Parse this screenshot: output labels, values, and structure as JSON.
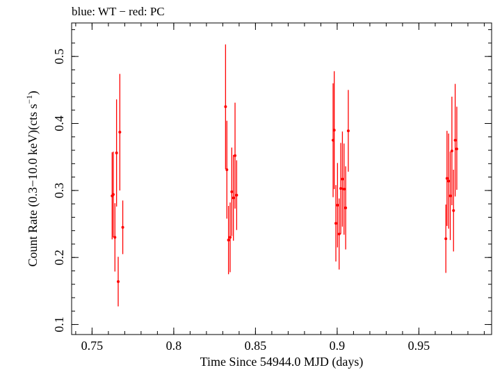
{
  "chart_data": {
    "type": "scatter",
    "title": "blue: WT − red: PC",
    "xlabel": "Time Since 54944.0 MJD (days)",
    "ylabel_main": "Count Rate (0.3−10.0 keV)(cts s",
    "ylabel_sup": "−1",
    "ylabel_end": ")",
    "xlim": [
      0.7375,
      0.9945
    ],
    "ylim": [
      0.085,
      0.55
    ],
    "x_ticks": [
      0.75,
      0.8,
      0.85,
      0.9,
      0.95
    ],
    "x_tick_labels": [
      "0.75",
      "0.8",
      "0.85",
      "0.9",
      "0.95"
    ],
    "y_ticks": [
      0.1,
      0.2,
      0.3,
      0.4,
      0.5
    ],
    "y_tick_labels": [
      "0.1",
      "0.2",
      "0.3",
      "0.4",
      "0.5"
    ],
    "x_minor_step": 0.01,
    "y_minor_step": 0.02,
    "grid": false,
    "series": [
      {
        "color": "#ff0000",
        "points": [
          {
            "x": 0.7623,
            "y": 0.292,
            "lo": 0.227,
            "hi": 0.357
          },
          {
            "x": 0.763,
            "y": 0.294,
            "lo": 0.23,
            "hi": 0.358
          },
          {
            "x": 0.764,
            "y": 0.23,
            "lo": 0.179,
            "hi": 0.281
          },
          {
            "x": 0.765,
            "y": 0.356,
            "lo": 0.276,
            "hi": 0.436
          },
          {
            "x": 0.766,
            "y": 0.164,
            "lo": 0.127,
            "hi": 0.201
          },
          {
            "x": 0.767,
            "y": 0.387,
            "lo": 0.3,
            "hi": 0.474
          },
          {
            "x": 0.7688,
            "y": 0.245,
            "lo": 0.205,
            "hi": 0.285
          },
          {
            "x": 0.8317,
            "y": 0.425,
            "lo": 0.332,
            "hi": 0.518
          },
          {
            "x": 0.8325,
            "y": 0.331,
            "lo": 0.258,
            "hi": 0.404
          },
          {
            "x": 0.8335,
            "y": 0.226,
            "lo": 0.175,
            "hi": 0.277
          },
          {
            "x": 0.8345,
            "y": 0.23,
            "lo": 0.178,
            "hi": 0.282
          },
          {
            "x": 0.8355,
            "y": 0.298,
            "lo": 0.232,
            "hi": 0.364
          },
          {
            "x": 0.8365,
            "y": 0.289,
            "lo": 0.225,
            "hi": 0.353
          },
          {
            "x": 0.8375,
            "y": 0.352,
            "lo": 0.273,
            "hi": 0.431
          },
          {
            "x": 0.8385,
            "y": 0.293,
            "lo": 0.241,
            "hi": 0.345
          },
          {
            "x": 0.8975,
            "y": 0.375,
            "lo": 0.29,
            "hi": 0.46
          },
          {
            "x": 0.8982,
            "y": 0.39,
            "lo": 0.302,
            "hi": 0.478
          },
          {
            "x": 0.8992,
            "y": 0.251,
            "lo": 0.194,
            "hi": 0.308
          },
          {
            "x": 0.9002,
            "y": 0.278,
            "lo": 0.215,
            "hi": 0.341
          },
          {
            "x": 0.9012,
            "y": 0.235,
            "lo": 0.182,
            "hi": 0.288
          },
          {
            "x": 0.9022,
            "y": 0.303,
            "lo": 0.235,
            "hi": 0.371
          },
          {
            "x": 0.9032,
            "y": 0.317,
            "lo": 0.246,
            "hi": 0.388
          },
          {
            "x": 0.9042,
            "y": 0.302,
            "lo": 0.234,
            "hi": 0.37
          },
          {
            "x": 0.9052,
            "y": 0.274,
            "lo": 0.212,
            "hi": 0.336
          },
          {
            "x": 0.9068,
            "y": 0.389,
            "lo": 0.328,
            "hi": 0.45
          },
          {
            "x": 0.9665,
            "y": 0.228,
            "lo": 0.177,
            "hi": 0.279
          },
          {
            "x": 0.9672,
            "y": 0.318,
            "lo": 0.247,
            "hi": 0.389
          },
          {
            "x": 0.9682,
            "y": 0.314,
            "lo": 0.243,
            "hi": 0.385
          },
          {
            "x": 0.9692,
            "y": 0.292,
            "lo": 0.226,
            "hi": 0.358
          },
          {
            "x": 0.9702,
            "y": 0.359,
            "lo": 0.278,
            "hi": 0.44
          },
          {
            "x": 0.9712,
            "y": 0.27,
            "lo": 0.209,
            "hi": 0.331
          },
          {
            "x": 0.9722,
            "y": 0.375,
            "lo": 0.291,
            "hi": 0.459
          },
          {
            "x": 0.9732,
            "y": 0.362,
            "lo": 0.301,
            "hi": 0.425
          }
        ]
      }
    ]
  }
}
